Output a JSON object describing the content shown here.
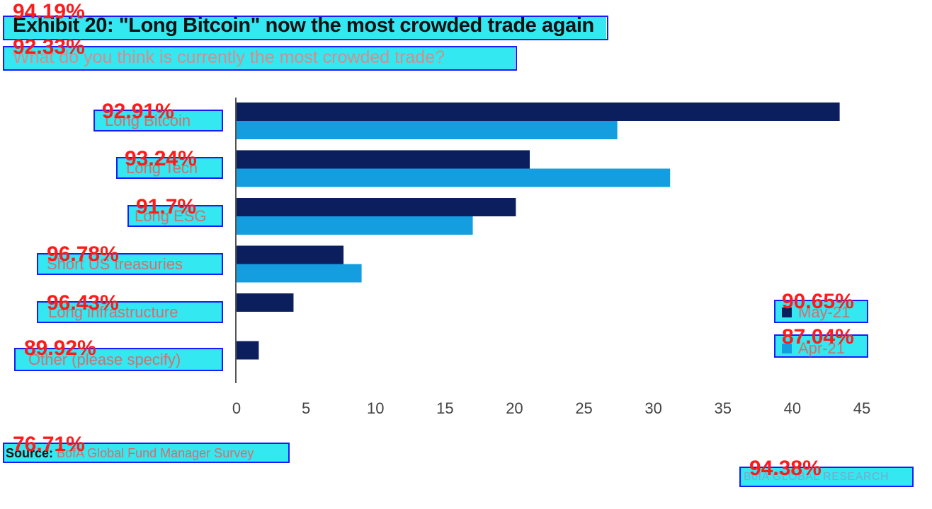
{
  "title": "Exhibit 20: \"Long Bitcoin\" now the most crowded trade again",
  "subtitle": "What do you think is currently the most crowded trade?",
  "source_prefix": "Source:",
  "source_text": "BofA Global Fund Manager Survey",
  "brand": "BofA GLOBAL RESEARCH",
  "scores": {
    "title": "94.19%",
    "subtitle": "92.33%",
    "categories": [
      "92.91%",
      "93.24%",
      "91.7%",
      "96.78%",
      "96.43%",
      "89.92%"
    ],
    "legend": [
      "90.65%",
      "87.04%"
    ],
    "source": "76.71%",
    "brand": "94.38%"
  },
  "colors": {
    "ocr_box": "#1a1aff",
    "ocr_fill": "#22e6f0",
    "score": "#ff1a1a",
    "may21": "#0b1f5e",
    "apr21": "#149ddf"
  },
  "chart_data": {
    "type": "bar",
    "orientation": "horizontal",
    "categories": [
      "Long Bitcoin",
      "Long Tech",
      "Long ESG",
      "Short US treasuries",
      "Long infrastructure",
      "Other (please specify)"
    ],
    "series": [
      {
        "name": "May-21",
        "values": [
          43.4,
          21.1,
          20.1,
          7.7,
          4.1,
          1.6
        ]
      },
      {
        "name": "Apr-21",
        "values": [
          27.4,
          31.2,
          17.0,
          9.0,
          null,
          null
        ]
      }
    ],
    "xlim": [
      0,
      45
    ],
    "xticks": [
      "0",
      "5",
      "10",
      "15",
      "20",
      "25",
      "30",
      "35",
      "40",
      "45"
    ],
    "legend_position": "right",
    "grid": false
  }
}
